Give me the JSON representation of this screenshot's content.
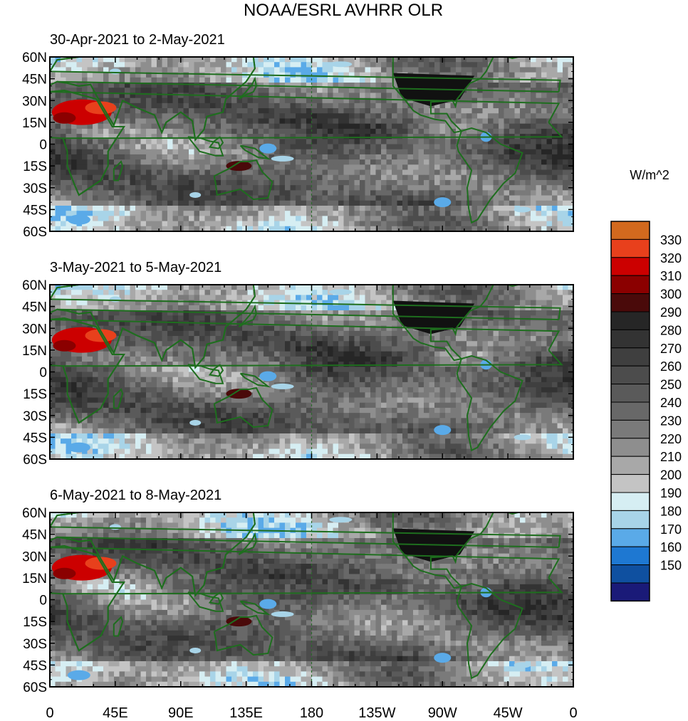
{
  "figure": {
    "title": "NOAA/ESRL AVHRR OLR",
    "units_label": "W/m^2"
  },
  "panels": [
    {
      "date_range": "30-Apr-2021 to 2-May-2021",
      "seed": 11
    },
    {
      "date_range": "3-May-2021 to 5-May-2021",
      "seed": 23
    },
    {
      "date_range": "6-May-2021 to 8-May-2021",
      "seed": 37
    }
  ],
  "axes": {
    "lat_ticks": [
      "60N",
      "45N",
      "30N",
      "15N",
      "0",
      "15S",
      "30S",
      "45S",
      "60S"
    ],
    "lat_values": [
      60,
      45,
      30,
      15,
      0,
      -15,
      -30,
      -45,
      -60
    ],
    "lon_ticks": [
      "0",
      "45E",
      "90E",
      "135E",
      "180",
      "135W",
      "90W",
      "45W",
      "0"
    ],
    "lon_values": [
      0,
      45,
      90,
      135,
      180,
      225,
      270,
      315,
      360
    ]
  },
  "colorbar": {
    "labels": [
      "330",
      "320",
      "310",
      "300",
      "290",
      "280",
      "270",
      "260",
      "250",
      "240",
      "230",
      "220",
      "210",
      "200",
      "190",
      "180",
      "170",
      "160",
      "150"
    ],
    "colors": [
      "#d2691e",
      "#e8401c",
      "#cc0000",
      "#8b0000",
      "#4a0a0a",
      "#262626",
      "#333333",
      "#3f3f3f",
      "#4c4c4c",
      "#5a5a5a",
      "#686868",
      "#7a7a7a",
      "#8e8e8e",
      "#a8a8a8",
      "#c4c4c4",
      "#d6eef3",
      "#a8d4e8",
      "#5aaae8",
      "#1e78d2",
      "#0f50a0",
      "#1a1a78"
    ],
    "levels": [
      330,
      320,
      310,
      300,
      290,
      280,
      270,
      260,
      250,
      240,
      230,
      220,
      210,
      200,
      190,
      180,
      170,
      160,
      150
    ]
  },
  "colors": {
    "coastline": "#1e6e1e",
    "dateline": "#2a6a2a"
  }
}
